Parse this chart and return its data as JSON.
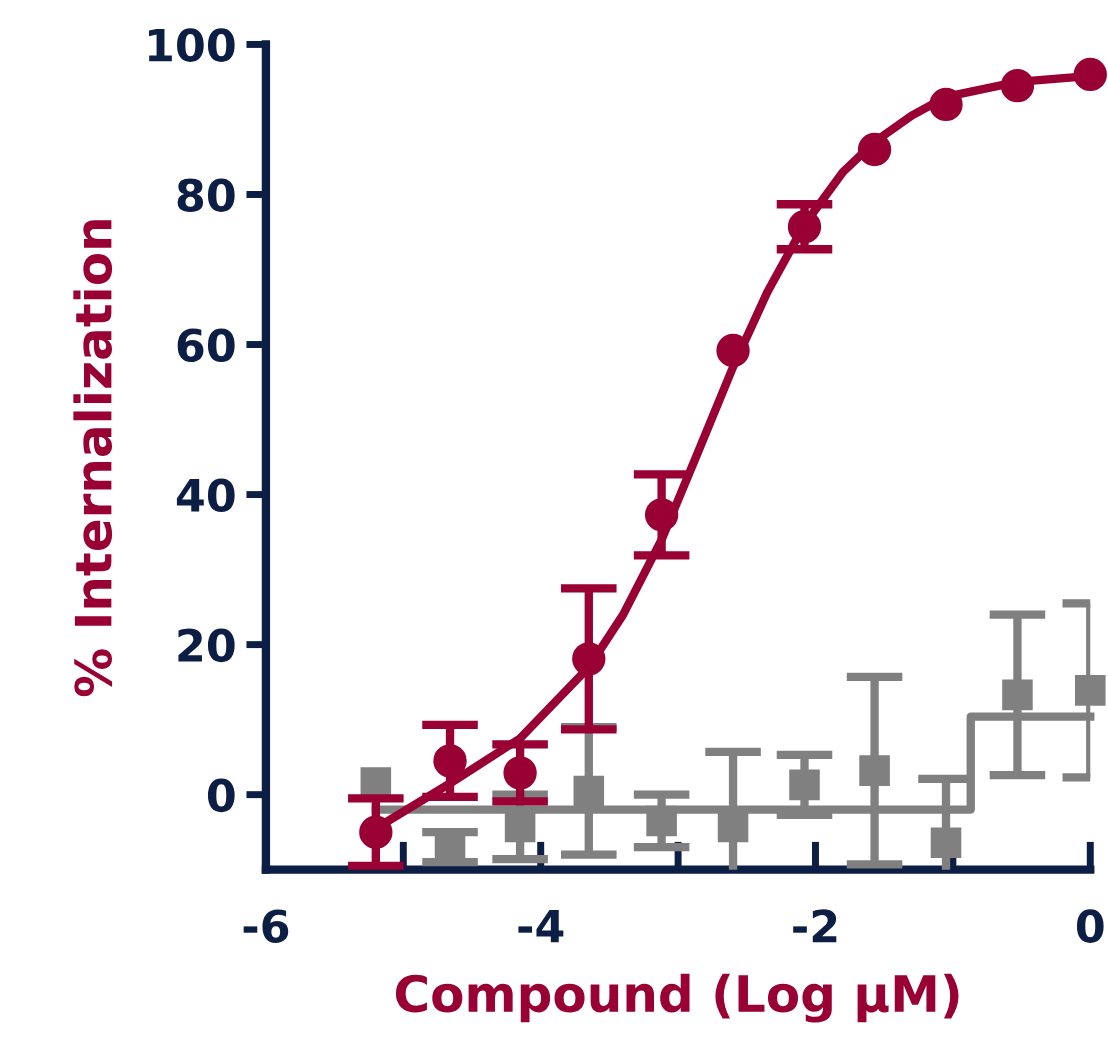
{
  "chart_data": {
    "type": "scatter",
    "xlabel": "Compound (Log µM)",
    "ylabel": "% Internalization",
    "xlim": [
      -6,
      0
    ],
    "ylim": [
      -10,
      100
    ],
    "xticks": [
      -6,
      {
        "value": -5,
        "label": null
      },
      -4,
      {
        "value": -3,
        "label": null
      },
      -2,
      {
        "value": -1,
        "label": null
      },
      0
    ],
    "yticks": [
      0,
      20,
      40,
      60,
      80,
      100
    ],
    "grid": false,
    "legend": false,
    "series": [
      {
        "type": "line",
        "color": "#808080",
        "marker": "none",
        "x": [
          -5.2,
          -0.87,
          -0.87,
          0
        ],
        "values": [
          -2,
          -2,
          10.4,
          10.4
        ]
      },
      {
        "color": "#808080",
        "marker": "square",
        "x": [
          -5.2,
          -4.66,
          -4.15,
          -3.65,
          -3.12,
          -2.6,
          -2.08,
          -1.57,
          -1.05,
          -0.53,
          0
        ],
        "values": [
          1.6,
          -7,
          -4.3,
          0.5,
          -3.5,
          -4.3,
          1.3,
          3.2,
          -6.4,
          13.3,
          13.9
        ],
        "errors": [
          null,
          2,
          4.3,
          8.5,
          3.5,
          10,
          4,
          12.5,
          8.5,
          10.7,
          11.6
        ]
      },
      {
        "type": "line",
        "color": "#990033",
        "marker": "none",
        "x": [
          -5.2,
          -4.66,
          -4.15,
          -3.65,
          -3.4,
          -3.12,
          -2.87,
          -2.6,
          -2.35,
          -2.08,
          -1.8,
          -1.57,
          -1.3,
          -1.05,
          -0.53,
          0
        ],
        "values": [
          -4.5,
          1.5,
          7.5,
          17,
          24,
          34,
          45,
          57,
          67,
          76,
          83,
          87,
          90.5,
          93,
          95,
          95.8
        ]
      },
      {
        "color": "#990033",
        "marker": "circle",
        "x": [
          -5.2,
          -4.66,
          -4.15,
          -3.65,
          -3.12,
          -2.6,
          -2.08,
          -1.57,
          -1.05,
          -0.53,
          0
        ],
        "values": [
          -5,
          4.5,
          2.9,
          18.1,
          37.3,
          59.2,
          75.7,
          86,
          92,
          94.5,
          96
        ],
        "errors": [
          4.5,
          4.8,
          3.8,
          9.4,
          5.4,
          null,
          3,
          null,
          null,
          null,
          null
        ]
      }
    ]
  }
}
